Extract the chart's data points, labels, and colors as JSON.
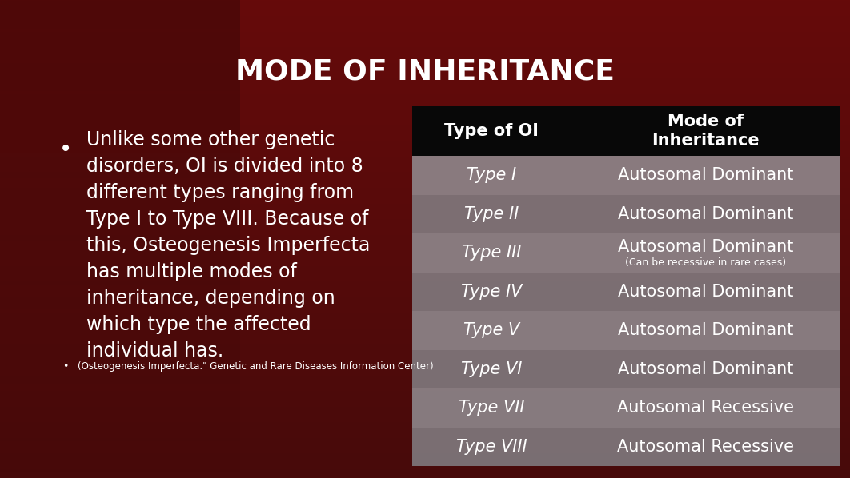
{
  "title": "MODE OF INHERITANCE",
  "title_color": "#ffffff",
  "title_fontsize": 26,
  "bg_color_dark": "#3a0a0a",
  "bg_color_mid": "#7a1a1a",
  "bullet_text_lines": [
    "Unlike some other genetic",
    "disorders, OI is divided into 8",
    "different types ranging from",
    "Type I to Type VIII. Because of",
    "this, Osteogenesis Imperfecta",
    "has multiple modes of",
    "inheritance, depending on",
    "which type the affected",
    "individual has."
  ],
  "citation_text": "(Osteogenesis Imperfecta.\" Genetic and Rare Diseases Information Center)",
  "table_header_bg": "#080808",
  "table_col1_header": "Type of OI",
  "table_col2_header": "Mode of\nInheritance",
  "table_rows": [
    [
      "Type I",
      "Autosomal Dominant",
      ""
    ],
    [
      "Type II",
      "Autosomal Dominant",
      ""
    ],
    [
      "Type III",
      "Autosomal Dominant",
      "(Can be recessive in rare cases)"
    ],
    [
      "Type IV",
      "Autosomal Dominant",
      ""
    ],
    [
      "Type V",
      "Autosomal Dominant",
      ""
    ],
    [
      "Type VI",
      "Autosomal Dominant",
      ""
    ],
    [
      "Type VII",
      "Autosomal Recessive",
      ""
    ],
    [
      "Type VIII",
      "Autosomal Recessive",
      ""
    ]
  ],
  "text_color": "#ffffff",
  "bullet_fontsize": 17,
  "table_fontsize": 15,
  "table_sub_fontsize": 9,
  "table_header_fontsize": 15,
  "row_colors_even": [
    0.58,
    0.58,
    0.6
  ],
  "row_colors_odd": [
    0.52,
    0.52,
    0.54
  ],
  "row_alpha": 0.82
}
